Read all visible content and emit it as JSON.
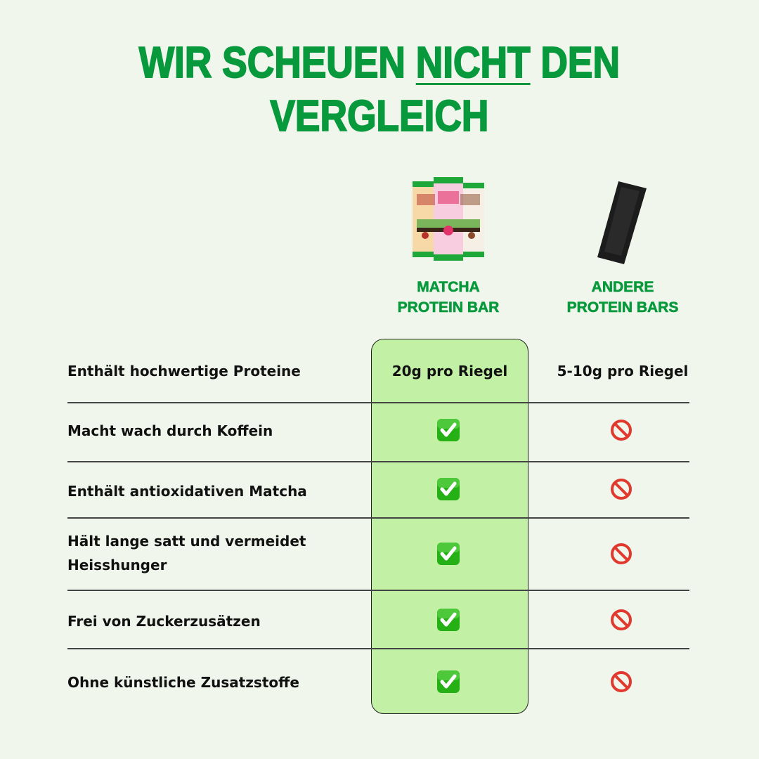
{
  "title": {
    "line1_before": "WIR SCHEUEN ",
    "line1_emph": "NICHT",
    "line1_after": " DEN",
    "line2": "VERGLEICH"
  },
  "colors": {
    "brand_green": "#07993c",
    "highlight": "#c2f0a5",
    "background": "#f0f6ec"
  },
  "columns": [
    {
      "line1": "MATCHA",
      "line2": "PROTEIN BAR",
      "image": "matcha-protein-bars-pack"
    },
    {
      "line1": "ANDERE",
      "line2": "PROTEIN BARS",
      "image": "black-protein-bar"
    }
  ],
  "rows": [
    {
      "label": "Enthält hochwertige Proteine",
      "ours": "20g pro Riegel",
      "others": "5-10g pro Riegel"
    },
    {
      "label": "Macht wach durch Koffein",
      "ours": "check-icon",
      "others": "prohibited-icon"
    },
    {
      "label": "Enthält antioxidativen Matcha",
      "ours": "check-icon",
      "others": "prohibited-icon"
    },
    {
      "label_line1": "Hält lange satt und vermeidet",
      "label_line2": "Heisshunger",
      "ours": "check-icon",
      "others": "prohibited-icon"
    },
    {
      "label": "Frei von Zuckerzusätzen",
      "ours": "check-icon",
      "others": "prohibited-icon"
    },
    {
      "label": "Ohne künstliche Zusatzstoffe",
      "ours": "check-icon",
      "others": "prohibited-icon"
    }
  ]
}
